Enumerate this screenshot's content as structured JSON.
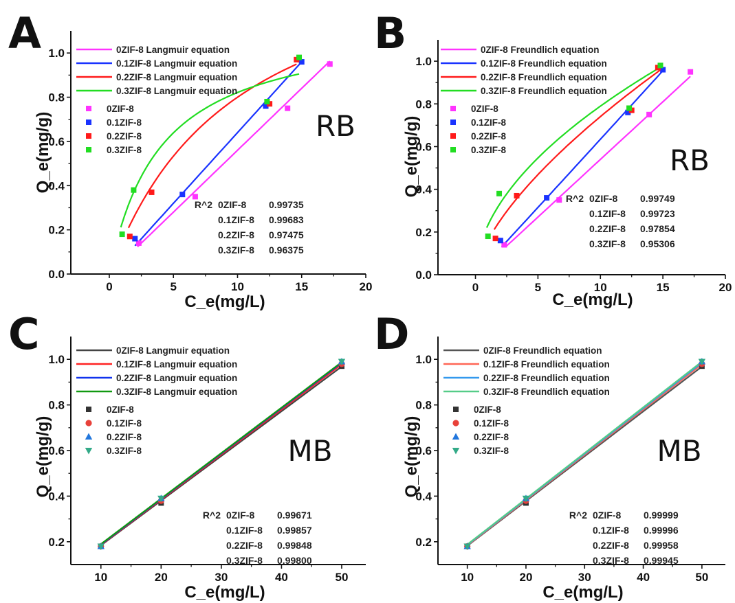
{
  "chart_data": [
    {
      "panel": "A",
      "type": "scatter",
      "dye_label": "RB",
      "xlabel": "C_e(mg/L)",
      "ylabel": "Q_e(mg/g)",
      "xlim": [
        -3,
        20
      ],
      "ylim": [
        0,
        1.1
      ],
      "xticks": [
        0,
        5,
        10,
        15,
        20
      ],
      "yticks": [
        0.0,
        0.2,
        0.4,
        0.6,
        0.8,
        1.0
      ],
      "model": "langmuir",
      "legend_placement": "top-left",
      "fit_legend": [
        "0ZIF-8   Langmuir equation",
        "0.1ZIF-8 Langmuir equation",
        "0.2ZIF-8 Langmuir equation",
        "0.3ZIF-8 Langmuir equation"
      ],
      "series": [
        {
          "name": "0ZIF-8",
          "color": "#ff33ff",
          "marker": "square",
          "x": [
            2.3,
            6.7,
            13.9,
            17.2
          ],
          "y": [
            0.14,
            0.35,
            0.75,
            0.95
          ],
          "fit_x": [
            2.2,
            17.2
          ],
          "fit_params": [
            0.056,
            0.0
          ]
        },
        {
          "name": "0.1ZIF-8",
          "color": "#1a33ff",
          "marker": "square",
          "x": [
            2.0,
            5.7,
            12.2,
            15.0
          ],
          "y": [
            0.16,
            0.36,
            0.76,
            0.96
          ],
          "fit_x": [
            2.0,
            15.0
          ],
          "fit_params": [
            0.064,
            0.0
          ]
        },
        {
          "name": "0.2ZIF-8",
          "color": "#ff1a1a",
          "marker": "square",
          "x": [
            1.6,
            3.3,
            12.5,
            14.6
          ],
          "y": [
            0.17,
            0.37,
            0.77,
            0.97
          ],
          "fit_x": [
            1.5,
            14.6
          ],
          "fit_params": [
            1.6,
            0.1
          ]
        },
        {
          "name": "0.3ZIF-8",
          "color": "#22dd22",
          "marker": "square",
          "x": [
            1.0,
            1.9,
            12.3,
            14.8
          ],
          "y": [
            0.18,
            0.38,
            0.78,
            0.98
          ],
          "fit_x": [
            0.9,
            14.8
          ],
          "fit_params": [
            1.15,
            0.25
          ]
        }
      ],
      "r2": {
        "header": "R^2",
        "rows": [
          {
            "name": "0ZIF-8",
            "value": "0.99735"
          },
          {
            "name": "0.1ZIF-8",
            "value": "0.99683"
          },
          {
            "name": "0.2ZIF-8",
            "value": "0.97475"
          },
          {
            "name": "0.3ZIF-8",
            "value": "0.96375"
          }
        ]
      }
    },
    {
      "panel": "B",
      "type": "scatter",
      "dye_label": "RB",
      "xlabel": "C_e(mg/L)",
      "ylabel": "Q_e(mg/g)",
      "xlim": [
        -3,
        20
      ],
      "ylim": [
        0,
        1.1
      ],
      "xticks": [
        0,
        5,
        10,
        15,
        20
      ],
      "yticks": [
        0.0,
        0.2,
        0.4,
        0.6,
        0.8,
        1.0
      ],
      "model": "freundlich",
      "legend_placement": "top-left",
      "fit_legend": [
        "0ZIF-8  Freundlich equation",
        "0.1ZIF-8 Freundlich equation",
        "0.2ZIF-8 Freundlich equation",
        "0.3ZIF-8 Freundlich equation"
      ],
      "series": [
        {
          "name": "0ZIF-8",
          "color": "#ff33ff",
          "marker": "square",
          "x": [
            2.3,
            6.7,
            13.9,
            17.2
          ],
          "y": [
            0.14,
            0.35,
            0.75,
            0.95
          ],
          "fit_x": [
            2.4,
            17.2
          ],
          "fit_params": [
            0.054,
            1.0
          ]
        },
        {
          "name": "0.1ZIF-8",
          "color": "#1a33ff",
          "marker": "square",
          "x": [
            2.0,
            5.7,
            12.2,
            15.0
          ],
          "y": [
            0.16,
            0.36,
            0.76,
            0.96
          ],
          "fit_x": [
            2.1,
            15.0
          ],
          "fit_params": [
            0.062,
            1.01
          ]
        },
        {
          "name": "0.2ZIF-8",
          "color": "#ff1a1a",
          "marker": "square",
          "x": [
            1.6,
            3.3,
            12.5,
            14.6
          ],
          "y": [
            0.17,
            0.37,
            0.77,
            0.97
          ],
          "fit_x": [
            1.5,
            14.8
          ],
          "fit_params": [
            0.162,
            0.66
          ]
        },
        {
          "name": "0.3ZIF-8",
          "color": "#22dd22",
          "marker": "square",
          "x": [
            1.0,
            1.9,
            12.3,
            14.8
          ],
          "y": [
            0.18,
            0.38,
            0.78,
            0.98
          ],
          "fit_x": [
            0.9,
            14.8
          ],
          "fit_params": [
            0.233,
            0.53
          ]
        }
      ],
      "r2": {
        "header": "R^2",
        "rows": [
          {
            "name": "0ZIF-8",
            "value": "0.99749"
          },
          {
            "name": "0.1ZIF-8",
            "value": "0.99723"
          },
          {
            "name": "0.2ZIF-8",
            "value": "0.97854"
          },
          {
            "name": "0.3ZIF-8",
            "value": "0.95306"
          }
        ]
      }
    },
    {
      "panel": "C",
      "type": "scatter",
      "dye_label": "MB",
      "xlabel": "C_e(mg/L)",
      "ylabel": "Q_e(mg/g)",
      "xlim": [
        5,
        54
      ],
      "ylim": [
        0.1,
        1.1
      ],
      "xticks": [
        10,
        20,
        30,
        40,
        50
      ],
      "yticks": [
        0.2,
        0.4,
        0.6,
        0.8,
        1.0
      ],
      "model": "linear",
      "legend_placement": "top-left",
      "fit_legend": [
        "0ZIF-8   Langmuir equation",
        "0.1ZIF-8 Langmuir equation",
        "0.2ZIF-8 Langmuir equation",
        "0.3ZIF-8 Langmuir equation"
      ],
      "series": [
        {
          "name": "0ZIF-8",
          "color": "#333333",
          "marker": "square",
          "x": [
            10,
            20,
            50
          ],
          "y": [
            0.18,
            0.37,
            0.97
          ],
          "fit_x": [
            10,
            50
          ],
          "fit_y": [
            0.184,
            0.968
          ]
        },
        {
          "name": "0.1ZIF-8",
          "color": "#e8413a",
          "marker": "circle",
          "x": [
            10,
            20,
            50
          ],
          "y": [
            0.18,
            0.38,
            0.98
          ],
          "fit_x": [
            10,
            50
          ],
          "fit_y": [
            0.186,
            0.978
          ]
        },
        {
          "name": "0.2ZIF-8",
          "color": "#2277dd",
          "marker": "triangle-up",
          "x": [
            10,
            20,
            50
          ],
          "y": [
            0.18,
            0.39,
            0.99
          ],
          "fit_x": [
            10,
            50
          ],
          "fit_y": [
            0.188,
            0.985
          ]
        },
        {
          "name": "0.3ZIF-8",
          "color": "#33aa88",
          "marker": "triangle-down",
          "x": [
            10,
            20,
            50
          ],
          "y": [
            0.18,
            0.39,
            0.99
          ],
          "fit_x": [
            10,
            50
          ],
          "fit_y": [
            0.19,
            0.988
          ]
        }
      ],
      "fit_colors": [
        "#444444",
        "#ff2222",
        "#1133ee",
        "#119911"
      ],
      "r2": {
        "header": "R^2",
        "rows": [
          {
            "name": "0ZIF-8",
            "value": "0.99671"
          },
          {
            "name": "0.1ZIF-8",
            "value": "0.99857"
          },
          {
            "name": "0.2ZIF-8",
            "value": "0.99848"
          },
          {
            "name": "0.3ZIF-8",
            "value": "0.99800"
          }
        ]
      }
    },
    {
      "panel": "D",
      "type": "scatter",
      "dye_label": "MB",
      "xlabel": "C_e(mg/L)",
      "ylabel": "Q_e(mg/g)",
      "xlim": [
        5,
        54
      ],
      "ylim": [
        0.1,
        1.1
      ],
      "xticks": [
        10,
        20,
        30,
        40,
        50
      ],
      "yticks": [
        0.2,
        0.4,
        0.6,
        0.8,
        1.0
      ],
      "model": "linear",
      "legend_placement": "top-left",
      "fit_legend": [
        "0ZIF-8   Freundlich equation",
        "0.1ZIF-8 Freundlich equation",
        "0.2ZIF-8 Freundlich equation",
        "0.3ZIF-8 Freundlich equation"
      ],
      "series": [
        {
          "name": "0ZIF-8",
          "color": "#333333",
          "marker": "square",
          "x": [
            10,
            20,
            50
          ],
          "y": [
            0.18,
            0.37,
            0.97
          ],
          "fit_x": [
            10,
            50
          ],
          "fit_y": [
            0.182,
            0.968
          ]
        },
        {
          "name": "0.1ZIF-8",
          "color": "#e8413a",
          "marker": "circle",
          "x": [
            10,
            20,
            50
          ],
          "y": [
            0.18,
            0.38,
            0.98
          ],
          "fit_x": [
            10,
            50
          ],
          "fit_y": [
            0.184,
            0.978
          ]
        },
        {
          "name": "0.2ZIF-8",
          "color": "#2277dd",
          "marker": "triangle-up",
          "x": [
            10,
            20,
            50
          ],
          "y": [
            0.18,
            0.39,
            0.99
          ],
          "fit_x": [
            10,
            50
          ],
          "fit_y": [
            0.186,
            0.985
          ]
        },
        {
          "name": "0.3ZIF-8",
          "color": "#33aa88",
          "marker": "triangle-down",
          "x": [
            10,
            20,
            50
          ],
          "y": [
            0.18,
            0.39,
            0.99
          ],
          "fit_x": [
            10,
            50
          ],
          "fit_y": [
            0.188,
            0.99
          ]
        }
      ],
      "fit_colors": [
        "#555555",
        "#ff6655",
        "#3399ee",
        "#55cc88"
      ],
      "r2": {
        "header": "R^2",
        "rows": [
          {
            "name": "0ZIF-8",
            "value": "0.99999"
          },
          {
            "name": "0.1ZIF-8",
            "value": "0.99996"
          },
          {
            "name": "0.2ZIF-8",
            "value": "0.99958"
          },
          {
            "name": "0.3ZIF-8",
            "value": "0.99945"
          }
        ]
      }
    }
  ]
}
